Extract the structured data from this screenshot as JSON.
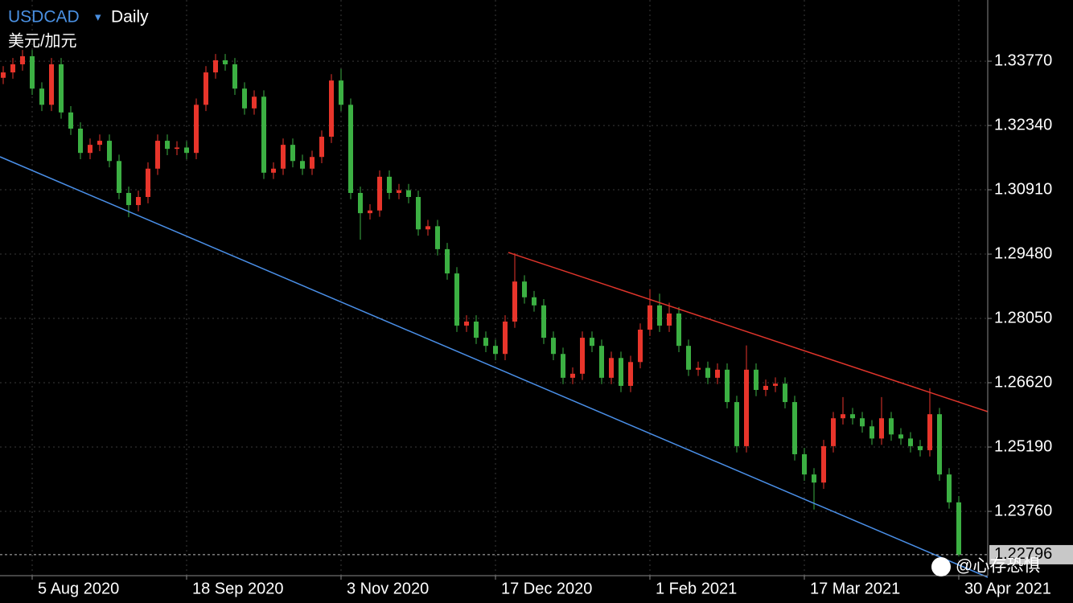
{
  "chart_data": {
    "type": "candlestick",
    "symbol": "USDCAD",
    "symbol_arrow": "▾",
    "timeframe": "Daily",
    "subtitle": "美元/加元",
    "watermark": "@心存恐惧",
    "up_color": "#e8352b",
    "down_color": "#3cb043",
    "categories": [
      null,
      null,
      null,
      "5 Aug 2020",
      null,
      null,
      null,
      null,
      null,
      null,
      null,
      null,
      null,
      null,
      null,
      null,
      null,
      null,
      null,
      "18 Sep 2020",
      null,
      null,
      null,
      null,
      null,
      null,
      null,
      null,
      null,
      null,
      null,
      null,
      null,
      null,
      null,
      "3 Nov 2020",
      null,
      null,
      null,
      null,
      null,
      null,
      null,
      null,
      null,
      null,
      null,
      null,
      null,
      null,
      null,
      "17 Dec 2020",
      null,
      null,
      null,
      null,
      null,
      null,
      null,
      null,
      null,
      null,
      null,
      null,
      null,
      null,
      null,
      "1 Feb 2021",
      null,
      null,
      null,
      null,
      null,
      null,
      null,
      null,
      null,
      null,
      null,
      null,
      null,
      null,
      null,
      "17 Mar 2021",
      null,
      null,
      null,
      null,
      null,
      null,
      null,
      null,
      null,
      null,
      null,
      null,
      null,
      null,
      null,
      "30 Apr 2021"
    ],
    "open": [
      1.334,
      1.3352,
      1.337,
      1.3388,
      1.3316,
      1.328,
      1.337,
      1.3263,
      1.3227,
      1.3173,
      1.3191,
      1.32,
      1.3155,
      1.3084,
      1.3057,
      1.3075,
      1.3138,
      1.32,
      1.3182,
      1.3185,
      1.3173,
      1.328,
      1.3352,
      1.3379,
      1.337,
      1.3316,
      1.3272,
      1.3298,
      1.3129,
      1.3138,
      1.3191,
      1.3155,
      1.3138,
      1.3164,
      1.3209,
      1.3334,
      1.328,
      1.3084,
      1.3039,
      1.3045,
      1.312,
      1.3084,
      1.309,
      1.3075,
      1.3003,
      1.301,
      1.2959,
      1.2905,
      1.2789,
      1.2798,
      1.2762,
      1.2744,
      1.2726,
      1.2798,
      1.2887,
      1.2852,
      1.2834,
      1.2762,
      1.2726,
      1.2673,
      1.2682,
      1.2762,
      1.2744,
      1.2673,
      1.2717,
      1.2655,
      1.2708,
      1.278,
      1.2834,
      1.2789,
      1.2816,
      1.2744,
      1.2691,
      1.2695,
      1.2673,
      1.2691,
      1.2619,
      1.2521,
      1.2691,
      1.2646,
      1.2655,
      1.266,
      1.2619,
      1.2503,
      1.2458,
      1.244,
      1.2521,
      1.2583,
      1.2592,
      1.2583,
      1.2565,
      1.2538,
      1.2583,
      1.2547,
      1.2538,
      1.2521,
      1.2512,
      1.2592,
      1.2458,
      1.2396
    ],
    "high": [
      1.3366,
      1.3384,
      1.3402,
      1.3402,
      1.333,
      1.3384,
      1.3384,
      1.3277,
      1.3241,
      1.3205,
      1.3214,
      1.3214,
      1.3169,
      1.3098,
      1.3089,
      1.3152,
      1.3214,
      1.3214,
      1.3199,
      1.3199,
      1.3294,
      1.3366,
      1.3393,
      1.3393,
      1.3384,
      1.333,
      1.3312,
      1.3312,
      1.3152,
      1.3205,
      1.3205,
      1.3169,
      1.3178,
      1.3223,
      1.3348,
      1.336,
      1.3294,
      1.3098,
      1.3059,
      1.3134,
      1.3134,
      1.3104,
      1.3104,
      1.3089,
      1.3024,
      1.3024,
      1.2973,
      1.2919,
      1.2812,
      1.2812,
      1.2776,
      1.2758,
      1.2812,
      1.295,
      1.2901,
      1.2866,
      1.2848,
      1.2776,
      1.274,
      1.2696,
      1.2776,
      1.2776,
      1.2758,
      1.2731,
      1.2731,
      1.2722,
      1.2794,
      1.287,
      1.286,
      1.284,
      1.283,
      1.2758,
      1.2709,
      1.2709,
      1.2705,
      1.2705,
      1.2633,
      1.2745,
      1.2705,
      1.2669,
      1.2674,
      1.2674,
      1.2633,
      1.2517,
      1.2472,
      1.2535,
      1.2597,
      1.263,
      1.2606,
      1.2597,
      1.2579,
      1.263,
      1.2597,
      1.2561,
      1.2552,
      1.2535,
      1.265,
      1.2606,
      1.2472,
      1.241
    ],
    "low": [
      1.3326,
      1.3338,
      1.3356,
      1.3302,
      1.3266,
      1.3266,
      1.3249,
      1.3213,
      1.3159,
      1.3159,
      1.3177,
      1.3141,
      1.307,
      1.303,
      1.3043,
      1.3061,
      1.3124,
      1.3168,
      1.3168,
      1.3159,
      1.3159,
      1.3266,
      1.3338,
      1.3356,
      1.3302,
      1.3258,
      1.3258,
      1.3115,
      1.3115,
      1.3124,
      1.3141,
      1.3124,
      1.3124,
      1.315,
      1.3195,
      1.3266,
      1.307,
      1.298,
      1.3025,
      1.3031,
      1.307,
      1.307,
      1.3061,
      1.2989,
      1.2989,
      1.2945,
      1.2891,
      1.2775,
      1.2775,
      1.2748,
      1.273,
      1.2712,
      1.2712,
      1.2784,
      1.2838,
      1.282,
      1.2748,
      1.2712,
      1.2659,
      1.2659,
      1.2668,
      1.273,
      1.2659,
      1.2659,
      1.2641,
      1.2641,
      1.2694,
      1.2766,
      1.2775,
      1.2775,
      1.273,
      1.2677,
      1.2677,
      1.2659,
      1.2659,
      1.2605,
      1.2507,
      1.2507,
      1.2632,
      1.2632,
      1.2641,
      1.2605,
      1.2489,
      1.2444,
      1.238,
      1.2426,
      1.2507,
      1.2569,
      1.2569,
      1.2551,
      1.2524,
      1.2524,
      1.2533,
      1.2524,
      1.2507,
      1.2498,
      1.2498,
      1.2444,
      1.2382,
      1.2276
    ],
    "close": [
      1.3352,
      1.337,
      1.3388,
      1.3316,
      1.328,
      1.337,
      1.3263,
      1.3227,
      1.3173,
      1.3191,
      1.32,
      1.3155,
      1.3084,
      1.3057,
      1.3075,
      1.3138,
      1.32,
      1.3182,
      1.3185,
      1.3173,
      1.328,
      1.3352,
      1.3379,
      1.337,
      1.3316,
      1.3272,
      1.3298,
      1.3129,
      1.3138,
      1.3191,
      1.3155,
      1.3138,
      1.3164,
      1.3209,
      1.3334,
      1.328,
      1.3084,
      1.3039,
      1.3045,
      1.312,
      1.3084,
      1.309,
      1.3075,
      1.3003,
      1.301,
      1.2959,
      1.2905,
      1.2789,
      1.2798,
      1.2762,
      1.2744,
      1.2726,
      1.2798,
      1.2887,
      1.2852,
      1.2834,
      1.2762,
      1.2726,
      1.2673,
      1.2682,
      1.2762,
      1.2744,
      1.2673,
      1.2717,
      1.2655,
      1.2708,
      1.278,
      1.2834,
      1.2789,
      1.2816,
      1.2744,
      1.2691,
      1.2695,
      1.2673,
      1.2691,
      1.2619,
      1.2521,
      1.2691,
      1.2646,
      1.2655,
      1.266,
      1.2619,
      1.2503,
      1.2458,
      1.244,
      1.2521,
      1.2583,
      1.2592,
      1.2583,
      1.2565,
      1.2538,
      1.2583,
      1.2547,
      1.2538,
      1.2521,
      1.2512,
      1.2592,
      1.2458,
      1.2396,
      1.22796
    ],
    "last_price": 1.22796,
    "ylim": [
      1.2233,
      1.3513
    ],
    "yticks": [
      {
        "value": 1.3377,
        "label": "1.33770"
      },
      {
        "value": 1.3234,
        "label": "1.32340"
      },
      {
        "value": 1.3091,
        "label": "1.30910"
      },
      {
        "value": 1.2948,
        "label": "1.29480"
      },
      {
        "value": 1.2805,
        "label": "1.28050"
      },
      {
        "value": 1.2662,
        "label": "1.26620"
      },
      {
        "value": 1.2519,
        "label": "1.25190"
      },
      {
        "value": 1.2376,
        "label": "1.23760"
      }
    ],
    "grid": true
  }
}
